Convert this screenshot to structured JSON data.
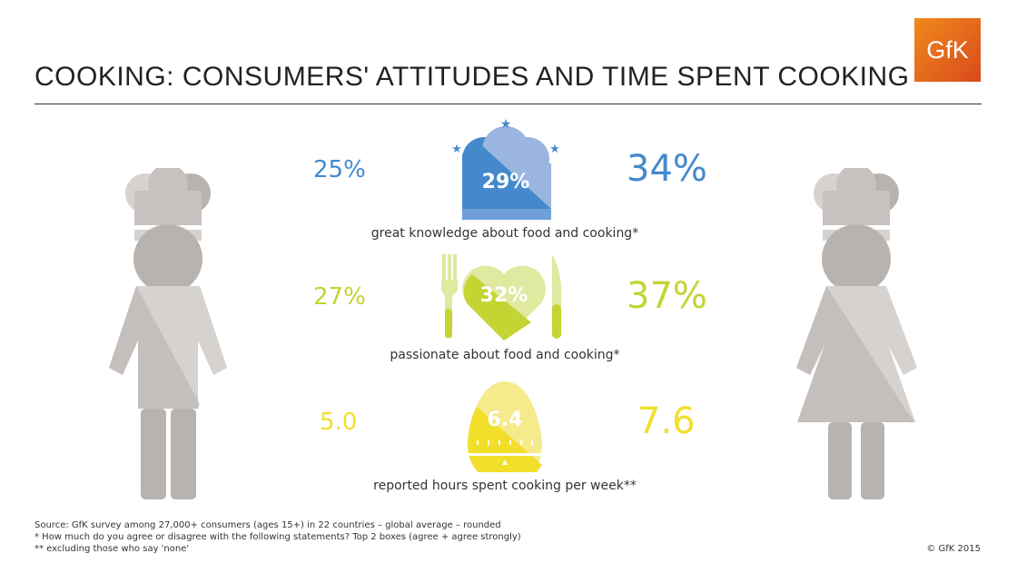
{
  "header": {
    "title": "COOKING: CONSUMERS' ATTITUDES AND TIME SPENT COOKING",
    "logo": "GfK"
  },
  "colors": {
    "blue": "#4489cc",
    "green": "#c3d433",
    "yellow": "#f1df2a",
    "figure": "#b8b3af"
  },
  "chart_data": {
    "type": "table",
    "series": [
      {
        "name": "men",
        "values": [
          "25%",
          "27%",
          "5.0"
        ]
      },
      {
        "name": "average",
        "values": [
          "29%",
          "32%",
          "6.4"
        ]
      },
      {
        "name": "women",
        "values": [
          "34%",
          "37%",
          "7.6"
        ]
      }
    ],
    "categories": [
      "great knowledge about food and cooking*",
      "passionate about food and cooking*",
      "reported hours spent cooking per week**"
    ]
  },
  "footer": {
    "source": "Source: GfK survey among 27,000+ consumers (ages 15+) in 22 countries – global average – rounded",
    "note1": "*   How much do you agree or disagree with the following statements? Top 2 boxes (agree + agree strongly)",
    "note2": "**  excluding those who say 'none'",
    "copyright": "© GfK 2015"
  }
}
